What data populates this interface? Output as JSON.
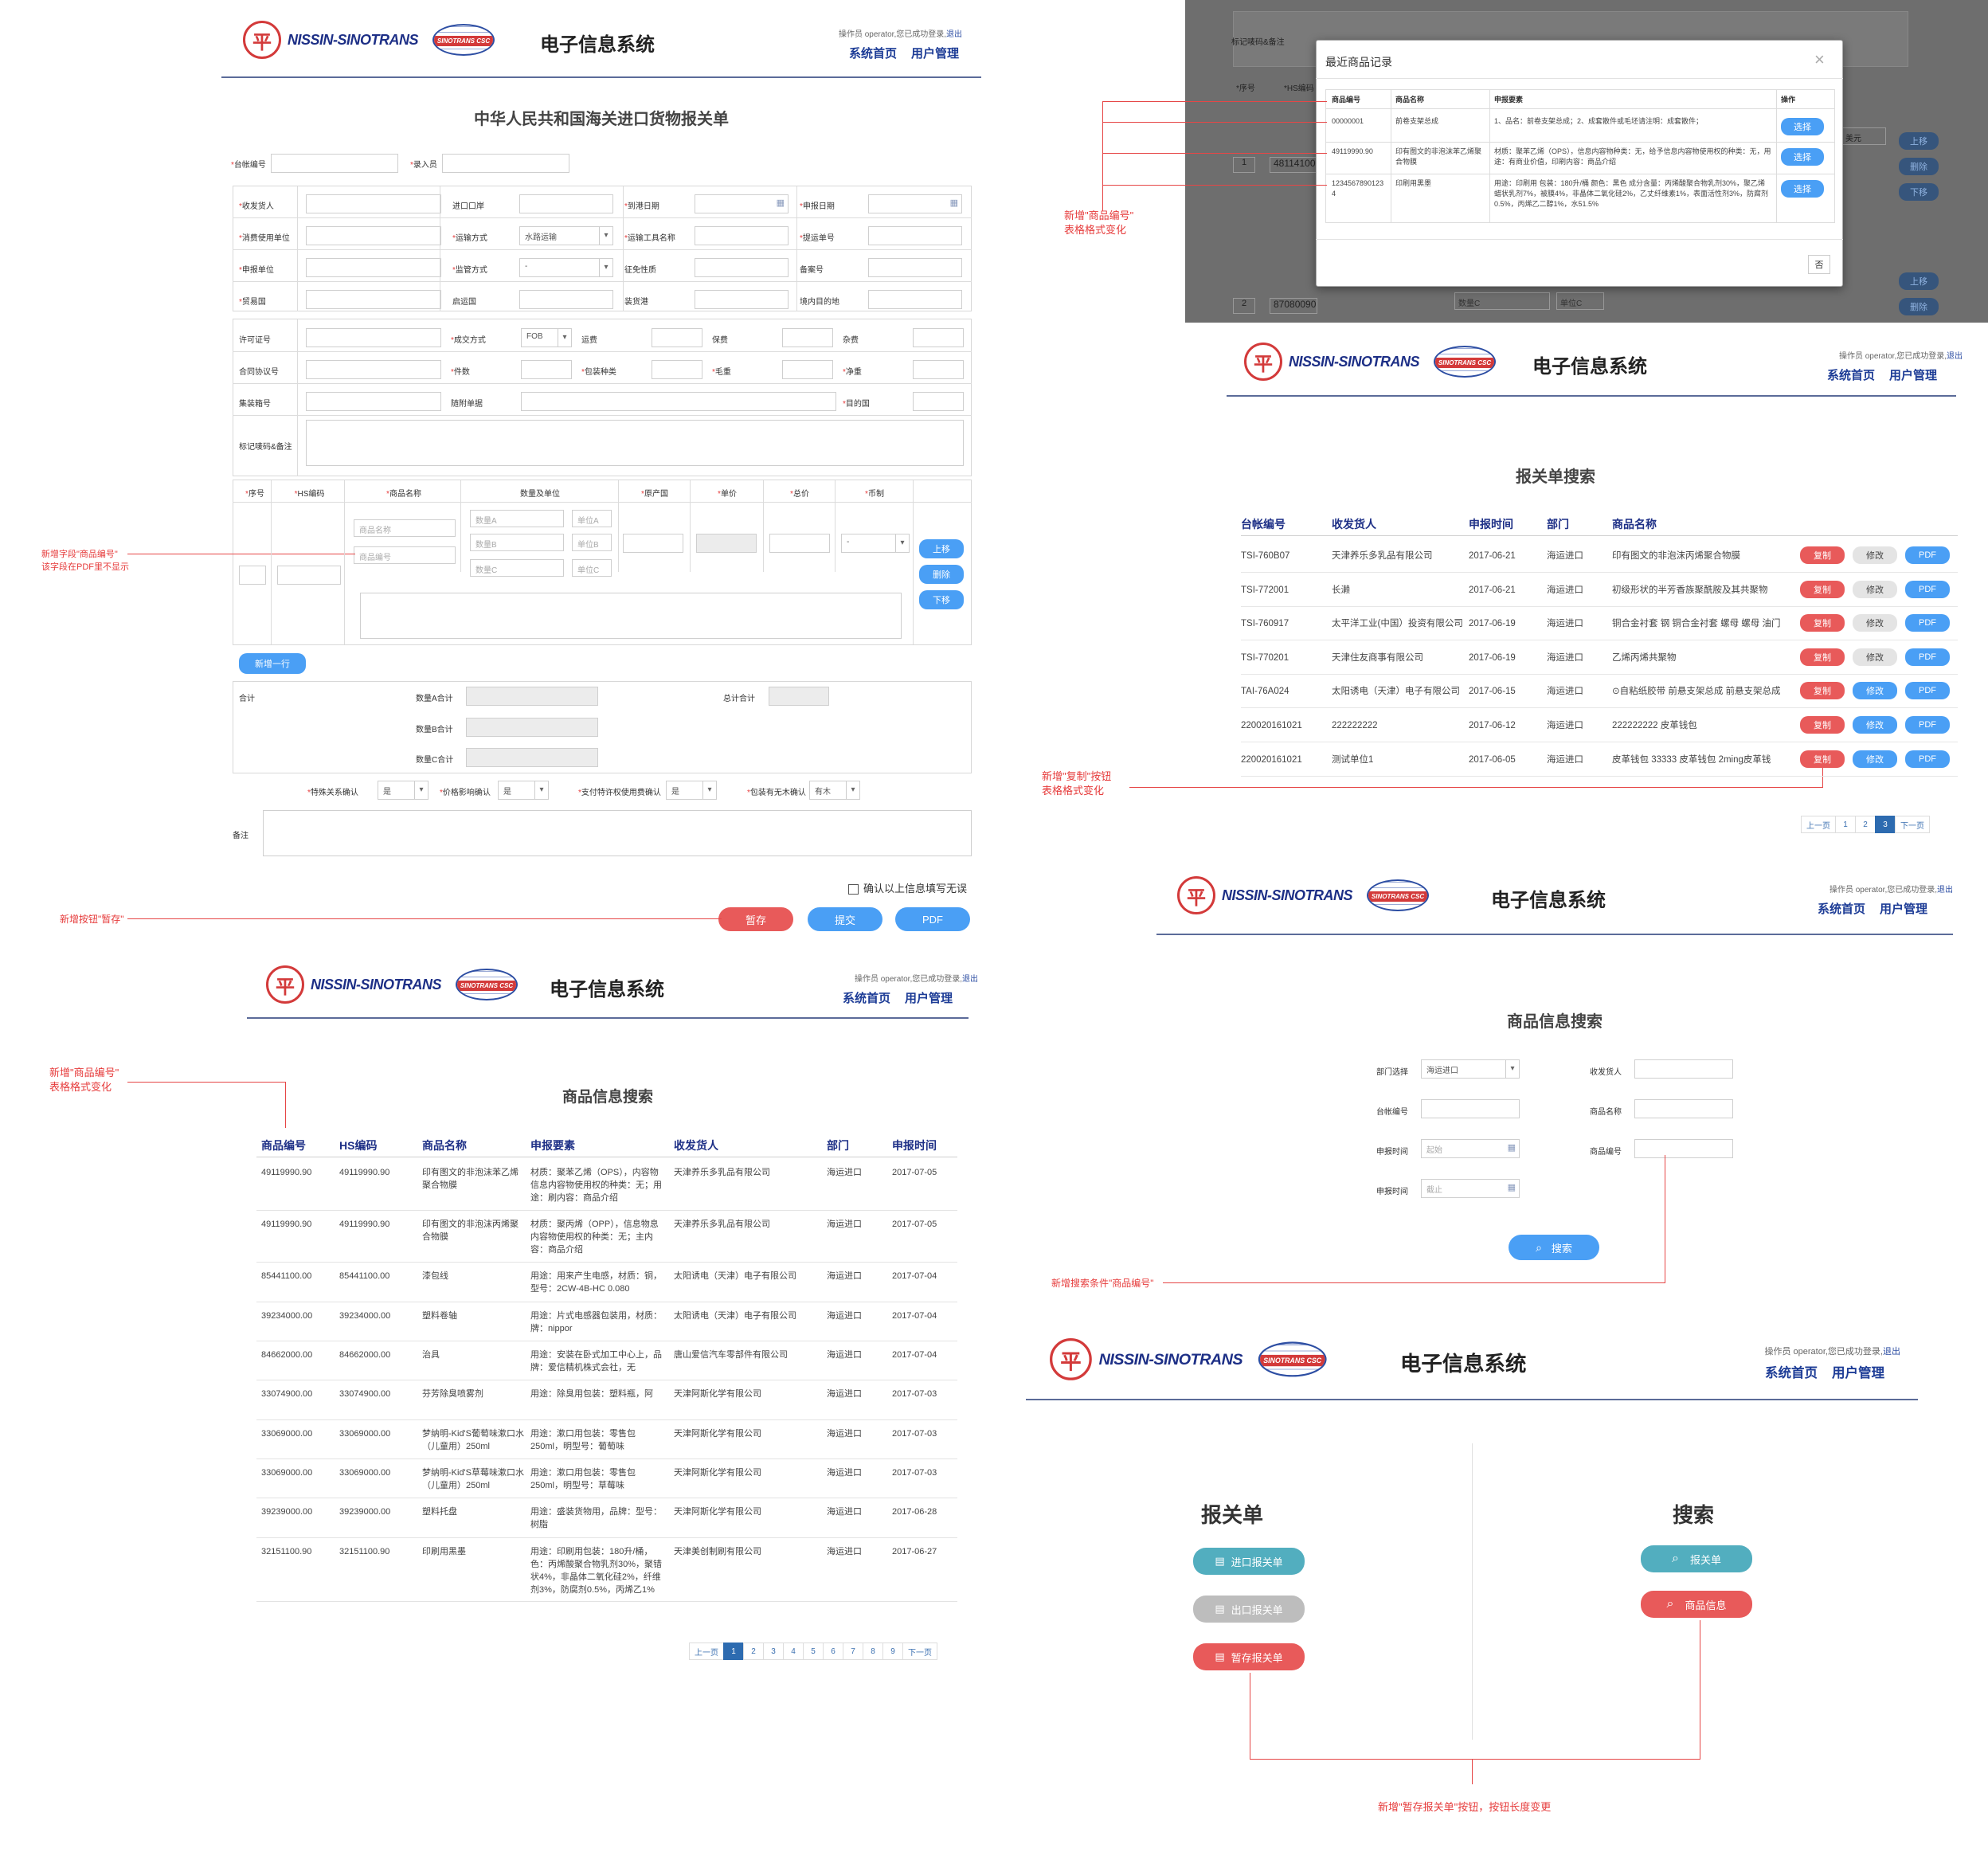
{
  "common": {
    "brand": "NISSIN-SINOTRANS",
    "globe_text": "SINOTRANS CSC",
    "system_title": "电子信息系统",
    "operator": "操作员 operator,您已成功登录,",
    "logout": "退出",
    "nav_home": "系统首页",
    "nav_users": "用户管理",
    "emblem": "平"
  },
  "declaration": {
    "title": "中华人民共和国海关进口货物报关单",
    "ledger_no": "台帐编号",
    "entry_user": "录入员",
    "f": [
      "收发货人",
      "进口口岸",
      "到港日期",
      "申报日期",
      "消费使用单位",
      "运输方式",
      "运输工具名称",
      "提运单号",
      "申报单位",
      "监管方式",
      "征免性质",
      "备案号",
      "贸易国",
      "启运国",
      "装货港",
      "境内目的地"
    ],
    "transport_value": "水路运输",
    "supervise_value": "-",
    "g": [
      "许可证号",
      "成交方式",
      "运费",
      "保费",
      "杂费",
      "合同协议号",
      "件数",
      "包装种类",
      "毛重",
      "净重",
      "集装箱号",
      "随附单据",
      "目的国"
    ],
    "deal_value": "FOB",
    "remarks_label": "标记唛码&备注",
    "cols": [
      "序号",
      "HS编码",
      "商品名称",
      "数量及单位",
      "原产国",
      "单价",
      "总价",
      "币制"
    ],
    "ph_name": "商品名称",
    "ph_code": "商品编号",
    "ph_qa": "数量A",
    "ph_qb": "数量B",
    "ph_qc": "数量C",
    "ph_ua": "单位A",
    "ph_ub": "单位B",
    "ph_uc": "单位C",
    "currency": "-",
    "move_up": "上移",
    "del": "删除",
    "move_down": "下移",
    "add_row": "新增一行",
    "total": "合计",
    "qa_total": "数量A合计",
    "qb_total": "数量B合计",
    "qc_total": "数量C合计",
    "sum_total": "总计合计",
    "conf": [
      "特殊关系确认",
      "价格影响确认",
      "支付特许权使用费确认",
      "包装有无木确认"
    ],
    "conf_vals": [
      "是",
      "是",
      "是",
      "有木"
    ],
    "note": "备注",
    "confirm_text": "确认以上信息填写无误",
    "save": "暂存",
    "submit": "提交",
    "pdf": "PDF"
  },
  "modal": {
    "title": "最近商品记录",
    "cols": [
      "商品编号",
      "商品名称",
      "申报要素",
      "操作"
    ],
    "rows": [
      {
        "code": "00000001",
        "name": "前卷支架总成",
        "el": "1、品名：前卷支架总成；2、成套散件或毛坯请注明：成套散件；",
        "btn": "选择"
      },
      {
        "code": "49119990.90",
        "name": "印有图文的非泡沫苯乙烯聚合物膜",
        "el": "材质：聚苯乙烯（OPS），信息内容物种类：无，给予信息内容物使用权的种类：无，用途：有商业价值，印刷内容：商品介绍",
        "btn": "选择"
      },
      {
        "code": "12345678901234",
        "name": "印刷用黑墨",
        "el": "用途：印刷用 包装：180升/桶 颜色：黑色 成分含量：丙烯酸聚合物乳剂30%，聚乙烯蜡状乳剂7%，被膜4%，非晶体二氧化硅2%，乙丈纤维素1%，表面活性剂3%，防腐剂0.5%，丙烯乙二醇1%，水51.5%",
        "btn": "选择"
      }
    ],
    "close_btn": "否",
    "bg_labels": [
      "标记唛码&备注",
      "*序号",
      "*HS编码"
    ],
    "bg_vals": [
      "1",
      "48114100",
      "2",
      "87080090",
      "数量C",
      "单位C",
      "美元"
    ],
    "bg_btns": [
      "上移",
      "删除",
      "下移",
      "上移",
      "删除"
    ]
  },
  "search": {
    "title": "报关单搜索",
    "cols": [
      "台帐编号",
      "收发货人",
      "申报时间",
      "部门",
      "商品名称"
    ],
    "rows": [
      [
        "TSI-760B07",
        "天津养乐多乳品有限公司",
        "2017-06-21",
        "海运进口",
        "印有图文的非泡沫丙烯聚合物膜"
      ],
      [
        "TSI-772001",
        "长濑",
        "2017-06-21",
        "海运进口",
        "初级形状的半芳香族聚酰胺及其共聚物"
      ],
      [
        "TSI-760917",
        "太平洋工业(中国）投资有限公司",
        "2017-06-19",
        "海运进口",
        "铜合金衬套 钢 铜合金衬套 螺母 螺母 油门"
      ],
      [
        "TSI-770201",
        "天津住友商事有限公司",
        "2017-06-19",
        "海运进口",
        "乙烯丙烯共聚物"
      ],
      [
        "TAI-76A024",
        "太阳诱电（天津）电子有限公司",
        "2017-06-15",
        "海运进口",
        "⊙自粘纸胶带 前悬支架总成 前悬支架总成"
      ],
      [
        "220020161021",
        "222222222",
        "2017-06-12",
        "海运进口",
        "222222222 皮革钱包"
      ],
      [
        "220020161021",
        "测试单位1",
        "2017-06-05",
        "海运进口",
        "皮革钱包 33333 皮革钱包 2ming皮革钱"
      ]
    ],
    "copy": "复制",
    "edit": "修改",
    "pdf": "PDF",
    "pages": [
      "上一页",
      "1",
      "2",
      "3",
      "下一页"
    ]
  },
  "goods": {
    "title": "商品信息搜索",
    "cols": [
      "商品编号",
      "HS编码",
      "商品名称",
      "申报要素",
      "收发货人",
      "部门",
      "申报时间"
    ],
    "rows": [
      [
        "49119990.90",
        "49119990.90",
        "印有图文的非泡沫苯乙烯聚合物膜",
        "材质：聚苯乙烯（OPS），内容物信息内容物使用权的种类：无；用途：刷内容：商品介绍",
        "天津养乐多乳品有限公司",
        "海运进口",
        "2017-07-05"
      ],
      [
        "49119990.90",
        "49119990.90",
        "印有图文的非泡沫丙烯聚合物膜",
        "材质：聚丙烯（OPP），信息物息内容物使用权的种类：无；主内容：商品介绍",
        "天津养乐多乳品有限公司",
        "海运进口",
        "2017-07-05"
      ],
      [
        "85441100.00",
        "85441100.00",
        "漆包线",
        "用途：用来产生电感，材质：铜，型号：2CW-4B-HC 0.080",
        "太阳诱电（天津）电子有限公司",
        "海运进口",
        "2017-07-04"
      ],
      [
        "39234000.00",
        "39234000.00",
        "塑料卷轴",
        "用途：片式电感器包装用，材质：牌：nippor",
        "太阳诱电（天津）电子有限公司",
        "海运进口",
        "2017-07-04"
      ],
      [
        "84662000.00",
        "84662000.00",
        "治具",
        "用途：安装在卧式加工中心上，品牌：爱信精机株式会社，无",
        "唐山爱信汽车零部件有限公司",
        "海运进口",
        "2017-07-04"
      ],
      [
        "33074900.00",
        "33074900.00",
        "芬芳除臭喷雾剂",
        "用途：除臭用包装：塑料瓶，阿",
        "天津阿斯化学有限公司",
        "海运进口",
        "2017-07-03"
      ],
      [
        "33069000.00",
        "33069000.00",
        "梦纳明-Kid'S葡萄味漱口水（儿童用）250ml",
        "用途：漱口用包装：零售包250ml，明型号：葡萄味",
        "天津阿斯化学有限公司",
        "海运进口",
        "2017-07-03"
      ],
      [
        "33069000.00",
        "33069000.00",
        "梦纳明-Kid'S草莓味漱口水（儿童用）250ml",
        "用途：漱口用包装：零售包250ml，明型号：草莓味",
        "天津阿斯化学有限公司",
        "海运进口",
        "2017-07-03"
      ],
      [
        "39239000.00",
        "39239000.00",
        "塑料托盘",
        "用途：盛装货物用，品牌：型号：树脂",
        "天津阿斯化学有限公司",
        "海运进口",
        "2017-06-28"
      ],
      [
        "32151100.90",
        "32151100.90",
        "印刷用黑墨",
        "用途：印刷用包装：180升/桶，色：丙烯酸聚合物乳剂30%，聚错状4%，非晶体二氧化硅2%，纤维剂3%，防腐剂0.5%，丙烯乙1%",
        "天津美创制刷有限公司",
        "海运进口",
        "2017-06-27"
      ]
    ],
    "pages": [
      "上一页",
      "1",
      "2",
      "3",
      "4",
      "5",
      "6",
      "7",
      "8",
      "9",
      "下一页"
    ]
  },
  "gsearch": {
    "title": "商品信息搜索",
    "dept": "部门选择",
    "dept_val": "海运进口",
    "shipper": "收发货人",
    "ledger": "台帐编号",
    "gname": "商品名称",
    "time": "申报时间",
    "from": "起始",
    "to": "截止",
    "gcode": "商品编号",
    "btn": "搜索"
  },
  "home": {
    "left_title": "报关单",
    "right_title": "搜索",
    "btn_import": "进口报关单",
    "btn_export": "出口报关单",
    "btn_saved": "暂存报关单",
    "btn_decl": "报关单",
    "btn_goods": "商品信息"
  },
  "annotations": {
    "a1": "新增字段\"商品编号\"",
    "a1b": "该字段在PDF里不显示",
    "a2": "新增按钮\"暂存\"",
    "a3": "新增\"商品编号\"",
    "a3b": "表格格式变化",
    "a4": "新增\"商品编号\"",
    "a4b": "表格格式变化",
    "a5": "新增\"复制\"按钮",
    "a5b": "表格格式变化",
    "a6": "新增搜索条件\"商品编号\"",
    "a7": "新增\"暂存报关单\"按钮，按钮长度变更"
  }
}
